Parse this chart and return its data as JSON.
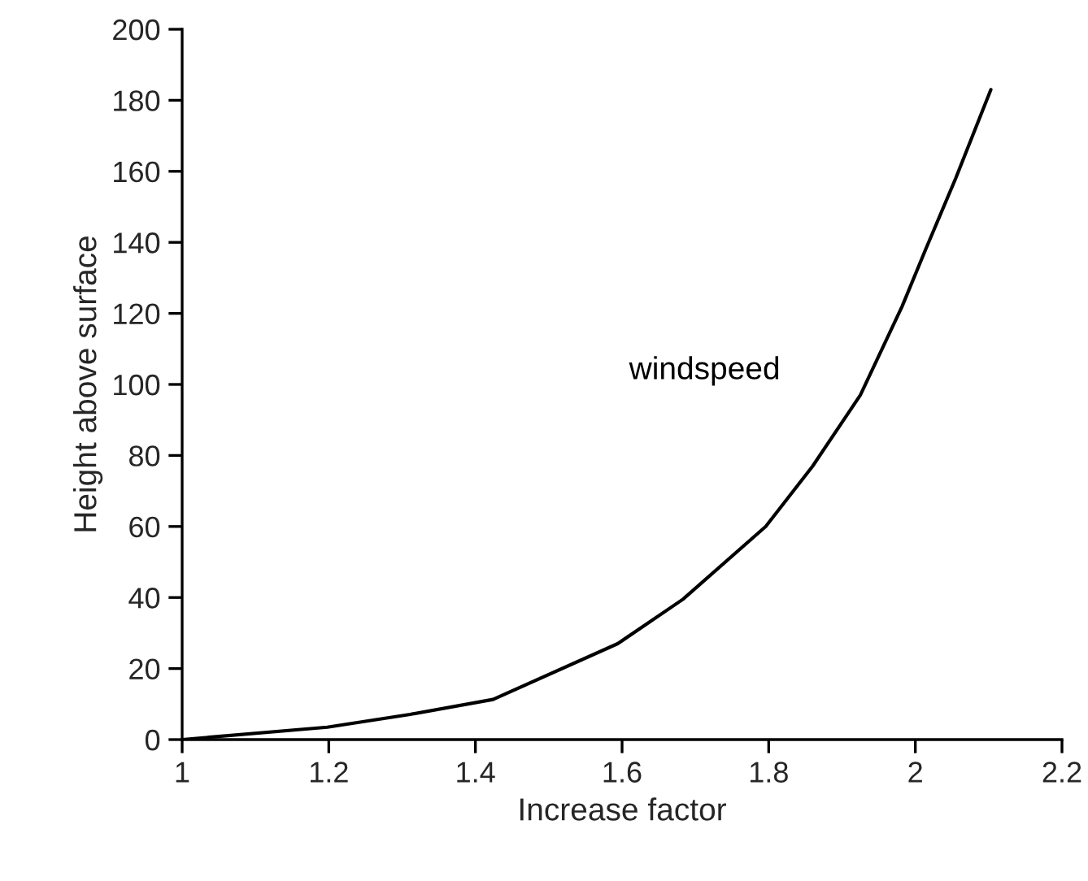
{
  "chart_data": {
    "type": "line",
    "xlabel": "Increase factor",
    "ylabel": "Height above surface",
    "x": [
      1,
      1.198,
      1.311,
      1.424,
      1.594,
      1.683,
      1.796,
      1.86,
      1.925,
      1.982,
      2.014,
      2.055,
      2.103
    ],
    "series": [
      {
        "name": "windspeed",
        "color": "#000000",
        "values": [
          0,
          3.5,
          7.1,
          11.3,
          27,
          39.5,
          60,
          77,
          97,
          122,
          138,
          158,
          183
        ]
      }
    ],
    "xlim": [
      1,
      2.2
    ],
    "xticks": [
      1,
      1.2,
      1.4,
      1.6,
      1.8,
      2,
      2.2
    ],
    "ylim": [
      0,
      200
    ],
    "yticks": [
      0,
      20,
      40,
      60,
      80,
      100,
      120,
      140,
      160,
      180,
      200
    ],
    "grid": false,
    "legend": false,
    "marker": "none",
    "line_style": "solid"
  }
}
